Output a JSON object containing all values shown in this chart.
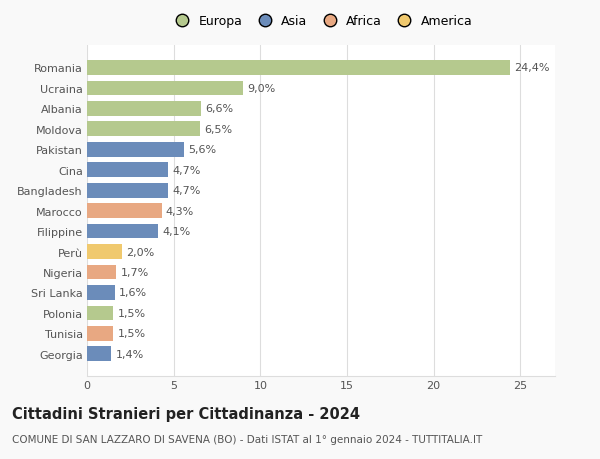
{
  "countries": [
    "Georgia",
    "Tunisia",
    "Polonia",
    "Sri Lanka",
    "Nigeria",
    "Perù",
    "Filippine",
    "Marocco",
    "Bangladesh",
    "Cina",
    "Pakistan",
    "Moldova",
    "Albania",
    "Ucraina",
    "Romania"
  ],
  "values": [
    1.4,
    1.5,
    1.5,
    1.6,
    1.7,
    2.0,
    4.1,
    4.3,
    4.7,
    4.7,
    5.6,
    6.5,
    6.6,
    9.0,
    24.4
  ],
  "labels": [
    "1,4%",
    "1,5%",
    "1,5%",
    "1,6%",
    "1,7%",
    "2,0%",
    "4,1%",
    "4,3%",
    "4,7%",
    "4,7%",
    "5,6%",
    "6,5%",
    "6,6%",
    "9,0%",
    "24,4%"
  ],
  "colors": [
    "#6b8cba",
    "#e8a882",
    "#b5c98e",
    "#6b8cba",
    "#e8a882",
    "#f0c96e",
    "#6b8cba",
    "#e8a882",
    "#6b8cba",
    "#6b8cba",
    "#6b8cba",
    "#b5c98e",
    "#b5c98e",
    "#b5c98e",
    "#b5c98e"
  ],
  "continent_colors": {
    "Europa": "#b5c98e",
    "Asia": "#6b8cba",
    "Africa": "#e8a882",
    "America": "#f0c96e"
  },
  "title": "Cittadini Stranieri per Cittadinanza - 2024",
  "subtitle": "COMUNE DI SAN LAZZARO DI SAVENA (BO) - Dati ISTAT al 1° gennaio 2024 - TUTTITALIA.IT",
  "xlim": [
    0,
    27
  ],
  "xticks": [
    0,
    5,
    10,
    15,
    20,
    25
  ],
  "background_color": "#f9f9f9",
  "bar_background": "#ffffff",
  "grid_color": "#dddddd",
  "title_fontsize": 10.5,
  "subtitle_fontsize": 7.5,
  "label_fontsize": 8,
  "tick_fontsize": 8,
  "legend_fontsize": 9
}
